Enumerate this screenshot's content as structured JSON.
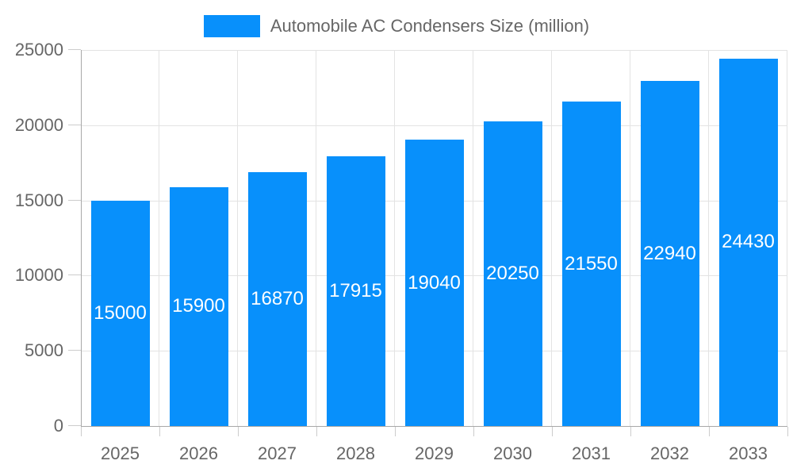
{
  "legend": {
    "label": "Automobile AC Condensers Size (million)"
  },
  "chart_data": {
    "type": "bar",
    "title": "Automobile AC Condensers Size (million)",
    "categories": [
      "2025",
      "2026",
      "2027",
      "2028",
      "2029",
      "2030",
      "2031",
      "2032",
      "2033"
    ],
    "values": [
      15000,
      15900,
      16870,
      17915,
      19040,
      20250,
      21550,
      22940,
      24430
    ],
    "series": [
      {
        "name": "Automobile AC Condensers Size (million)",
        "values": [
          15000,
          15900,
          16870,
          17915,
          19040,
          20250,
          21550,
          22940,
          24430
        ]
      }
    ],
    "xlabel": "",
    "ylabel": "",
    "ylim": [
      0,
      25000
    ],
    "ytick_step": 5000,
    "ytick_labels": [
      "0",
      "5000",
      "10000",
      "15000",
      "20000",
      "25000"
    ],
    "grid": true,
    "legend_position": "top",
    "bar_labels_shown": true,
    "colors": {
      "bar": "#0890FB",
      "bar_label": "#FFFFFF",
      "axis_text": "#666666",
      "gridline": "#E3E3E3",
      "tick": "#CCCCCC",
      "axis_line": "#A8A8A8",
      "background": "#FFFFFF"
    }
  }
}
